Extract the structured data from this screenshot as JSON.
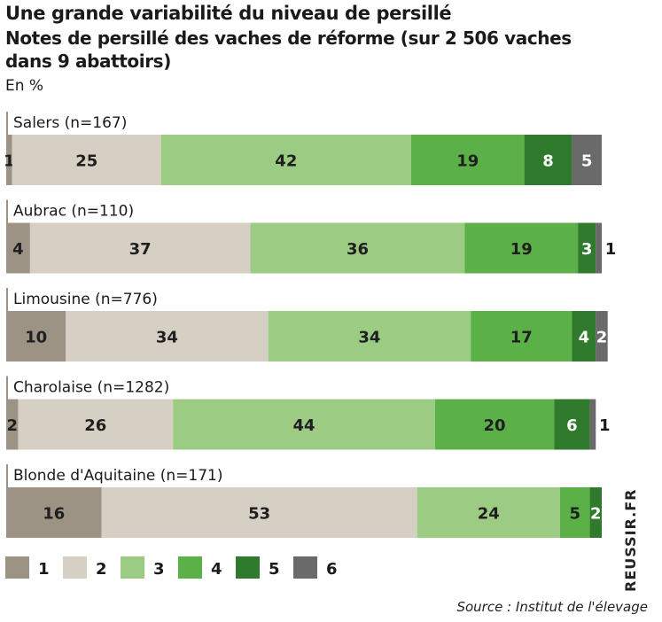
{
  "title": "Une grande variabilité du niveau de persillé",
  "subtitle": "Notes de persillé des vaches de réforme (sur 2 506 vaches dans 9 abattoirs)",
  "unit_label": "En %",
  "source": "Source : Institut de l'élevage",
  "watermark": "REUSSIR.FR",
  "colors": {
    "1": "#9c9385",
    "2": "#d6cfc3",
    "3": "#9ccc84",
    "4": "#5cb048",
    "5": "#2f7a2c",
    "6": "#6a6a6a"
  },
  "chart_data": {
    "type": "bar",
    "orientation": "horizontal",
    "stacked": true,
    "unit": "%",
    "categories": [
      "Salers (n=167)",
      "Aubrac (n=110)",
      "Limousine (n=776)",
      "Charolaise (n=1282)",
      "Blonde d'Aquitaine (n=171)"
    ],
    "series": [
      {
        "name": "1",
        "values": [
          1,
          4,
          10,
          2,
          16
        ]
      },
      {
        "name": "2",
        "values": [
          25,
          37,
          34,
          26,
          53
        ]
      },
      {
        "name": "3",
        "values": [
          42,
          36,
          34,
          44,
          24
        ]
      },
      {
        "name": "4",
        "values": [
          19,
          19,
          17,
          20,
          5
        ]
      },
      {
        "name": "5",
        "values": [
          8,
          3,
          4,
          6,
          2
        ]
      },
      {
        "name": "6",
        "values": [
          5,
          1,
          2,
          1,
          0
        ]
      }
    ],
    "legend": [
      "1",
      "2",
      "3",
      "4",
      "5",
      "6"
    ],
    "legend_position": "bottom"
  }
}
